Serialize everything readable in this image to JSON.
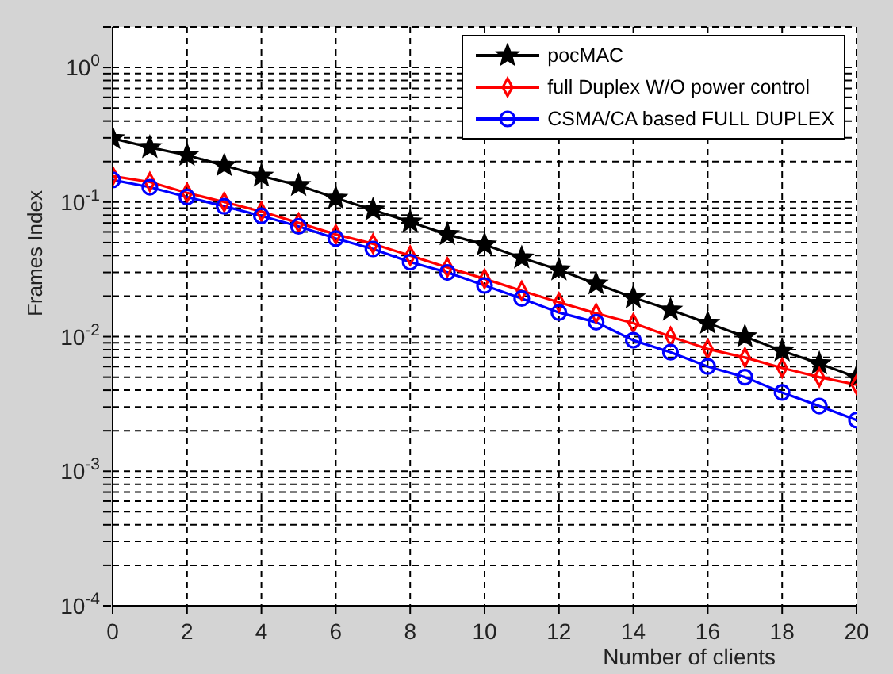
{
  "chart_data": {
    "type": "line",
    "xlabel": "Number of clients",
    "ylabel": "Frames Index",
    "x": [
      0,
      1,
      2,
      3,
      4,
      5,
      6,
      7,
      8,
      9,
      10,
      11,
      12,
      13,
      14,
      15,
      16,
      17,
      18,
      19,
      20
    ],
    "series": [
      {
        "name": "pocMAC",
        "color": "#000000",
        "marker": "star",
        "values": [
          0.297,
          0.255,
          0.223,
          0.187,
          0.156,
          0.133,
          0.107,
          0.0875,
          0.0711,
          0.0575,
          0.0482,
          0.0385,
          0.0314,
          0.0247,
          0.0195,
          0.0158,
          0.0126,
          0.01,
          0.00785,
          0.0063,
          0.005
        ]
      },
      {
        "name": "full Duplex W/O power control",
        "color": "#ff0000",
        "marker": "diamond",
        "values": [
          0.156,
          0.141,
          0.117,
          0.1,
          0.085,
          0.07,
          0.0575,
          0.049,
          0.04,
          0.0327,
          0.0269,
          0.0219,
          0.018,
          0.0149,
          0.0126,
          0.01,
          0.0081,
          0.007,
          0.00585,
          0.005,
          0.0044
        ]
      },
      {
        "name": "CSMA/CA based FULL DUPLEX",
        "color": "#0000ff",
        "marker": "circle",
        "values": [
          0.146,
          0.129,
          0.109,
          0.093,
          0.079,
          0.066,
          0.0536,
          0.0448,
          0.0358,
          0.03,
          0.024,
          0.0192,
          0.0151,
          0.0128,
          0.0094,
          0.00766,
          0.006,
          0.005,
          0.00385,
          0.00305,
          0.0024
        ]
      }
    ],
    "log": "y",
    "xlim": [
      0,
      20
    ],
    "xticks": [
      0,
      2,
      4,
      6,
      8,
      10,
      12,
      14,
      16,
      18,
      20
    ],
    "ylim": [
      0.0001,
      2
    ],
    "yticks": [
      {
        "value": 0.0001,
        "label": "10$^{-4}$"
      },
      {
        "value": 0.0002,
        "label": null
      },
      {
        "value": 0.0003,
        "label": null
      },
      {
        "value": 0.0004,
        "label": null
      },
      {
        "value": 0.0005,
        "label": null
      },
      {
        "value": 0.0006,
        "label": null
      },
      {
        "value": 0.0007,
        "label": null
      },
      {
        "value": 0.0008,
        "label": null
      },
      {
        "value": 0.0009,
        "label": null
      },
      {
        "value": 0.001,
        "label": "10$^{-3}$"
      },
      {
        "value": 0.002,
        "label": null
      },
      {
        "value": 0.003,
        "label": null
      },
      {
        "value": 0.004,
        "label": null
      },
      {
        "value": 0.005,
        "label": null
      },
      {
        "value": 0.006,
        "label": null
      },
      {
        "value": 0.007,
        "label": null
      },
      {
        "value": 0.008,
        "label": null
      },
      {
        "value": 0.009,
        "label": null
      },
      {
        "value": 0.01,
        "label": "10$^{-2}$"
      },
      {
        "value": 0.02,
        "label": null
      },
      {
        "value": 0.03,
        "label": null
      },
      {
        "value": 0.04,
        "label": null
      },
      {
        "value": 0.05,
        "label": null
      },
      {
        "value": 0.06,
        "label": null
      },
      {
        "value": 0.07,
        "label": null
      },
      {
        "value": 0.08,
        "label": null
      },
      {
        "value": 0.09,
        "label": null
      },
      {
        "value": 0.1,
        "label": "10$^{-1}$"
      },
      {
        "value": 0.2,
        "label": null
      },
      {
        "value": 0.3,
        "label": null
      },
      {
        "value": 0.4,
        "label": null
      },
      {
        "value": 0.5,
        "label": null
      },
      {
        "value": 0.6,
        "label": null
      },
      {
        "value": 0.7,
        "label": null
      },
      {
        "value": 0.8,
        "label": null
      },
      {
        "value": 0.9,
        "label": null
      },
      {
        "value": 1,
        "label": "10$^{0}$"
      },
      {
        "value": 2,
        "label": null
      }
    ],
    "grid": true,
    "legend": "top right",
    "line_style": "solid"
  }
}
